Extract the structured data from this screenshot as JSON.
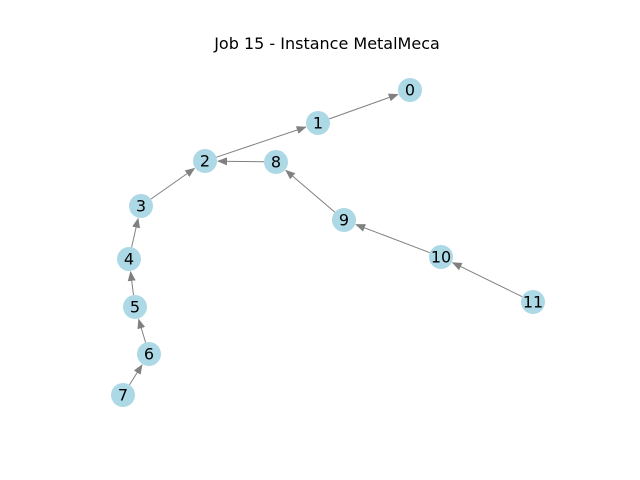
{
  "title": "Job 15 - Instance MetalMeca",
  "colors": {
    "node_fill": "#add8e6",
    "edge_stroke": "#808080",
    "label": "#000000",
    "background": "#ffffff"
  },
  "nodes": [
    {
      "id": "0",
      "label": "0"
    },
    {
      "id": "1",
      "label": "1"
    },
    {
      "id": "2",
      "label": "2"
    },
    {
      "id": "3",
      "label": "3"
    },
    {
      "id": "4",
      "label": "4"
    },
    {
      "id": "5",
      "label": "5"
    },
    {
      "id": "6",
      "label": "6"
    },
    {
      "id": "7",
      "label": "7"
    },
    {
      "id": "8",
      "label": "8"
    },
    {
      "id": "9",
      "label": "9"
    },
    {
      "id": "10",
      "label": "10"
    },
    {
      "id": "11",
      "label": "11"
    }
  ],
  "edges": [
    {
      "from": "1",
      "to": "0"
    },
    {
      "from": "2",
      "to": "1"
    },
    {
      "from": "8",
      "to": "2"
    },
    {
      "from": "3",
      "to": "2"
    },
    {
      "from": "4",
      "to": "3"
    },
    {
      "from": "5",
      "to": "4"
    },
    {
      "from": "6",
      "to": "5"
    },
    {
      "from": "7",
      "to": "6"
    },
    {
      "from": "9",
      "to": "8"
    },
    {
      "from": "10",
      "to": "9"
    },
    {
      "from": "11",
      "to": "10"
    }
  ]
}
